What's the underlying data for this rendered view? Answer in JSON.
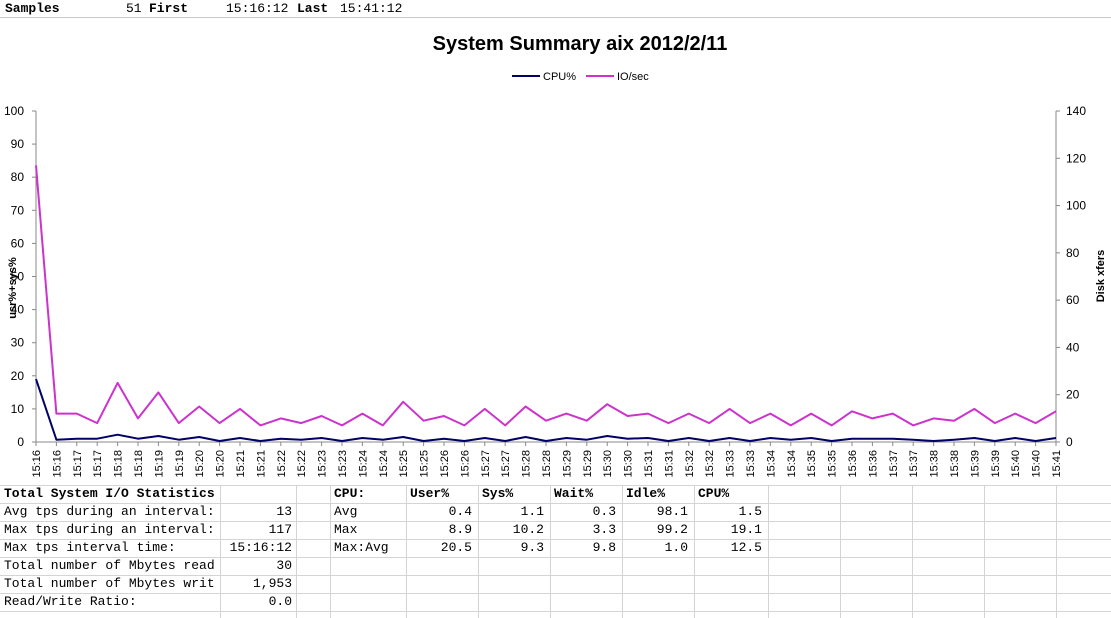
{
  "header": {
    "samples_label": "Samples",
    "samples_value": "51",
    "first_label": "First",
    "first_value": "15:16:12",
    "last_label": "Last",
    "last_value": "15:41:12"
  },
  "chart_data": {
    "type": "line",
    "title": "System Summary aix  2012/2/11",
    "ylabel": "usr%+sys%",
    "y2label": "Disk xfers",
    "ylim": [
      0,
      100
    ],
    "y2lim": [
      0,
      140
    ],
    "yticks": [
      0,
      10,
      20,
      30,
      40,
      50,
      60,
      70,
      80,
      90,
      100
    ],
    "y2ticks": [
      0,
      20,
      40,
      60,
      80,
      100,
      120,
      140
    ],
    "legend_position": "top",
    "categories": [
      "15:16",
      "15:16",
      "15:17",
      "15:17",
      "15:18",
      "15:18",
      "15:19",
      "15:19",
      "15:20",
      "15:20",
      "15:21",
      "15:21",
      "15:22",
      "15:22",
      "15:23",
      "15:23",
      "15:24",
      "15:24",
      "15:25",
      "15:25",
      "15:26",
      "15:26",
      "15:27",
      "15:27",
      "15:28",
      "15:28",
      "15:29",
      "15:29",
      "15:30",
      "15:30",
      "15:31",
      "15:31",
      "15:32",
      "15:32",
      "15:33",
      "15:33",
      "15:34",
      "15:34",
      "15:35",
      "15:35",
      "15:36",
      "15:36",
      "15:37",
      "15:37",
      "15:38",
      "15:38",
      "15:39",
      "15:39",
      "15:40",
      "15:40",
      "15:41"
    ],
    "series": [
      {
        "name": "CPU%",
        "axis": "left",
        "color": "#000066",
        "values": [
          19,
          0.7,
          1,
          1,
          2.2,
          1,
          1.8,
          0.7,
          1.5,
          0.3,
          1.2,
          0.3,
          1,
          0.7,
          1.2,
          0.3,
          1.2,
          0.7,
          1.5,
          0.3,
          1,
          0.3,
          1.2,
          0.3,
          1.5,
          0.3,
          1.2,
          0.7,
          1.8,
          1,
          1.2,
          0.3,
          1.2,
          0.3,
          1.2,
          0.3,
          1.2,
          0.7,
          1.2,
          0.3,
          1,
          1,
          1,
          0.7,
          0.3,
          0.7,
          1.2,
          0.3,
          1.2,
          0.3,
          1.2
        ]
      },
      {
        "name": "IO/sec",
        "axis": "right",
        "color": "#cc33cc",
        "values": [
          117,
          12,
          12,
          8,
          25,
          10,
          21,
          8,
          15,
          8,
          14,
          7,
          10,
          8,
          11,
          7,
          12,
          7,
          17,
          9,
          11,
          7,
          14,
          7,
          15,
          9,
          12,
          9,
          16,
          11,
          12,
          8,
          12,
          8,
          14,
          8,
          12,
          7,
          12,
          7,
          13,
          10,
          12,
          7,
          10,
          9,
          14,
          8,
          12,
          8,
          13
        ]
      }
    ]
  },
  "stats": {
    "io_title": "Total System I/O Statistics",
    "io_rows": [
      {
        "label": "Avg tps during an interval:",
        "value": "13"
      },
      {
        "label": "Max tps during an interval:",
        "value": "117"
      },
      {
        "label": "Max tps interval time:",
        "value": "15:16:12"
      },
      {
        "label": "Total number of Mbytes read",
        "value": "30"
      },
      {
        "label": "Total number of Mbytes writ",
        "value": "1,953"
      },
      {
        "label": "Read/Write Ratio:",
        "value": "0.0"
      }
    ],
    "cpu_headers": [
      "CPU:",
      "User%",
      "Sys%",
      "Wait%",
      "Idle%",
      "CPU%"
    ],
    "cpu_rows": [
      {
        "label": "Avg",
        "values": [
          "0.4",
          "1.1",
          "0.3",
          "98.1",
          "1.5"
        ]
      },
      {
        "label": "Max",
        "values": [
          "8.9",
          "10.2",
          "3.3",
          "99.2",
          "19.1"
        ]
      },
      {
        "label": "Max:Avg",
        "values": [
          "20.5",
          "9.3",
          "9.8",
          "1.0",
          "12.5"
        ]
      }
    ]
  }
}
